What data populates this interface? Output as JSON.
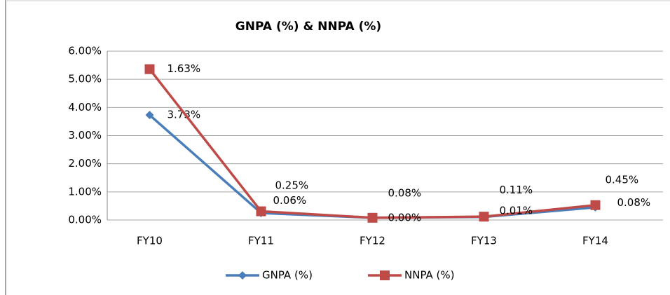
{
  "chart_data": {
    "type": "line",
    "stacked": true,
    "title": "GNPA (%)  & NNPA (%)",
    "categories": [
      "FY10",
      "FY11",
      "FY12",
      "FY13",
      "FY14"
    ],
    "series": [
      {
        "name": "GNPA (%)",
        "color": "#4a7ebb",
        "marker": "diamond",
        "values": [
          3.73,
          0.25,
          0.08,
          0.11,
          0.45
        ],
        "value_labels": [
          "3.73%",
          "0.25%",
          "0.08%",
          "0.11%",
          "0.45%"
        ]
      },
      {
        "name": "NNPA (%)",
        "color": "#be4b48",
        "marker": "square",
        "values": [
          1.63,
          0.06,
          0.0,
          0.01,
          0.08
        ],
        "value_labels": [
          "1.63%",
          "0.06%",
          "0.00%",
          "0.01%",
          "0.08%"
        ]
      }
    ],
    "ylim": [
      0,
      6
    ],
    "yticks": [
      {
        "value": 0,
        "label": "0.00%"
      },
      {
        "value": 1,
        "label": "1.00%"
      },
      {
        "value": 2,
        "label": "2.00%"
      },
      {
        "value": 3,
        "label": "3.00%"
      },
      {
        "value": 4,
        "label": "4.00%"
      },
      {
        "value": 5,
        "label": "5.00%"
      },
      {
        "value": 6,
        "label": "6.00%"
      }
    ],
    "grid": true,
    "legend": "bottom"
  }
}
